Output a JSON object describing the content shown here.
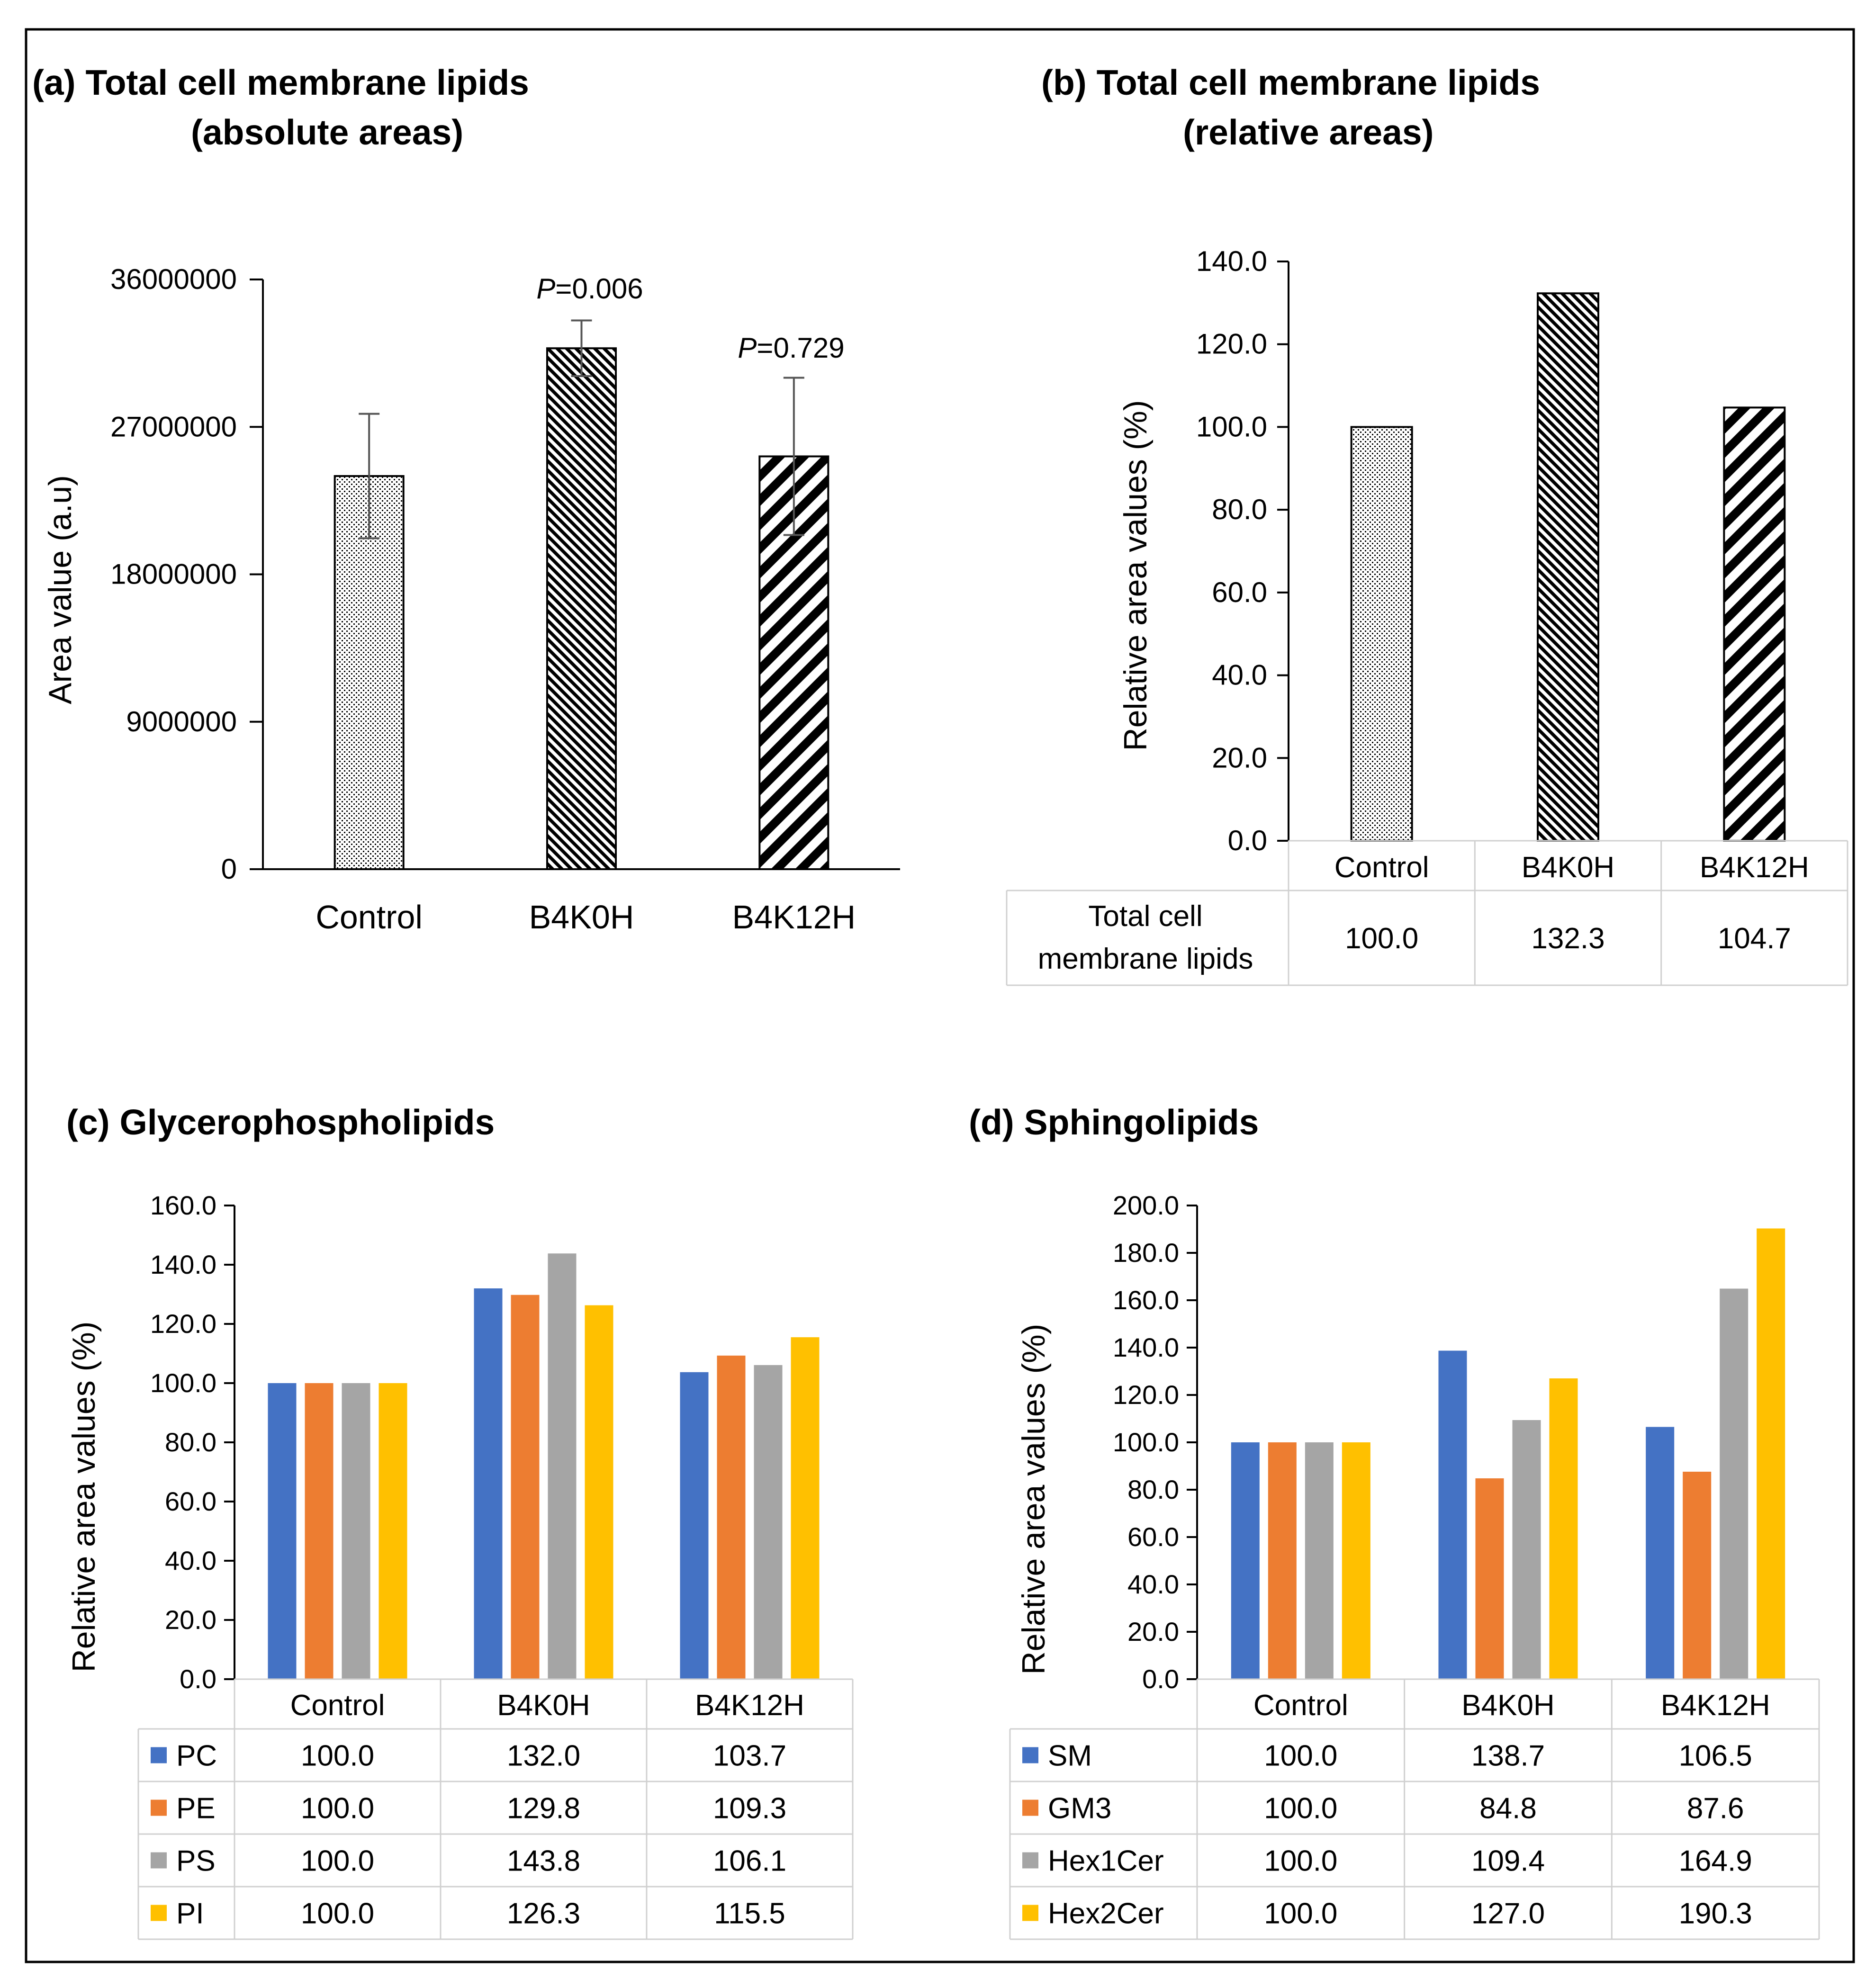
{
  "chart_data": [
    {
      "id": "a",
      "type": "bar",
      "title_line1": "(a) Total cell membrane lipids",
      "title_line2": "(absolute areas)",
      "ylabel": "Area value (a.u)",
      "xlabel": "",
      "ylim": [
        0,
        36000000
      ],
      "yticks": [
        "36000000",
        "27000000",
        "18000000",
        "9000000",
        "0"
      ],
      "categories": [
        "Control",
        "B4K0H",
        "B4K12H"
      ],
      "values": [
        24000000,
        31800000,
        25200000
      ],
      "errors": [
        3800000,
        1700000,
        4800000
      ],
      "annotations": [
        {
          "italic": "P",
          "rest": "=0.006",
          "category": "B4K0H"
        },
        {
          "italic": "P",
          "rest": "=0.729",
          "category": "B4K12H"
        }
      ],
      "patterns": [
        "dots",
        "dense-diagonal",
        "wide-diagonal"
      ]
    },
    {
      "id": "b",
      "type": "bar",
      "title_line1": "(b) Total cell membrane lipids",
      "title_line2": "(relative areas)",
      "ylabel": "Relative area values (%)",
      "xlabel": "",
      "ylim": [
        0,
        140
      ],
      "yticks": [
        "140.0",
        "120.0",
        "100.0",
        "80.0",
        "60.0",
        "40.0",
        "20.0",
        "0.0"
      ],
      "categories": [
        "Control",
        "B4K0H",
        "B4K12H"
      ],
      "series": [
        {
          "name": "Total cell membrane lipids",
          "name_lines": [
            "Total cell",
            "membrane lipids"
          ],
          "values": [
            100.0,
            132.3,
            104.7
          ],
          "labels": [
            "100.0",
            "132.3",
            "104.7"
          ]
        }
      ],
      "patterns": [
        "dots",
        "dense-diagonal",
        "wide-diagonal"
      ]
    },
    {
      "id": "c",
      "type": "bar",
      "title": "(c) Glycerophospholipids",
      "ylabel": "Relative area values (%)",
      "xlabel": "",
      "ylim": [
        0,
        160
      ],
      "yticks": [
        "160.0",
        "140.0",
        "120.0",
        "100.0",
        "80.0",
        "60.0",
        "40.0",
        "20.0",
        "0.0"
      ],
      "categories": [
        "Control",
        "B4K0H",
        "B4K12H"
      ],
      "series": [
        {
          "name": "PC",
          "color": "#4472C4",
          "values": [
            100.0,
            132.0,
            103.7
          ],
          "labels": [
            "100.0",
            "132.0",
            "103.7"
          ]
        },
        {
          "name": "PE",
          "color": "#ED7D31",
          "values": [
            100.0,
            129.8,
            109.3
          ],
          "labels": [
            "100.0",
            "129.8",
            "109.3"
          ]
        },
        {
          "name": "PS",
          "color": "#A5A5A5",
          "values": [
            100.0,
            143.8,
            106.1
          ],
          "labels": [
            "100.0",
            "143.8",
            "106.1"
          ]
        },
        {
          "name": "PI",
          "color": "#FFC000",
          "values": [
            100.0,
            126.3,
            115.5
          ],
          "labels": [
            "100.0",
            "126.3",
            "115.5"
          ]
        }
      ]
    },
    {
      "id": "d",
      "type": "bar",
      "title": "(d) Sphingolipids",
      "ylabel": "Relative area values (%)",
      "xlabel": "",
      "ylim": [
        0,
        200
      ],
      "yticks": [
        "200.0",
        "180.0",
        "160.0",
        "140.0",
        "120.0",
        "100.0",
        "80.0",
        "60.0",
        "40.0",
        "20.0",
        "0.0"
      ],
      "categories": [
        "Control",
        "B4K0H",
        "B4K12H"
      ],
      "series": [
        {
          "name": "SM",
          "color": "#4472C4",
          "values": [
            100.0,
            138.7,
            106.5
          ],
          "labels": [
            "100.0",
            "138.7",
            "106.5"
          ]
        },
        {
          "name": "GM3",
          "color": "#ED7D31",
          "values": [
            100.0,
            84.8,
            87.6
          ],
          "labels": [
            "100.0",
            "84.8",
            "87.6"
          ]
        },
        {
          "name": "Hex1Cer",
          "color": "#A5A5A5",
          "values": [
            100.0,
            109.4,
            164.9
          ],
          "labels": [
            "100.0",
            "109.4",
            "164.9"
          ]
        },
        {
          "name": "Hex2Cer",
          "color": "#FFC000",
          "values": [
            100.0,
            127.0,
            190.3
          ],
          "labels": [
            "100.0",
            "127.0",
            "190.3"
          ]
        }
      ]
    }
  ]
}
